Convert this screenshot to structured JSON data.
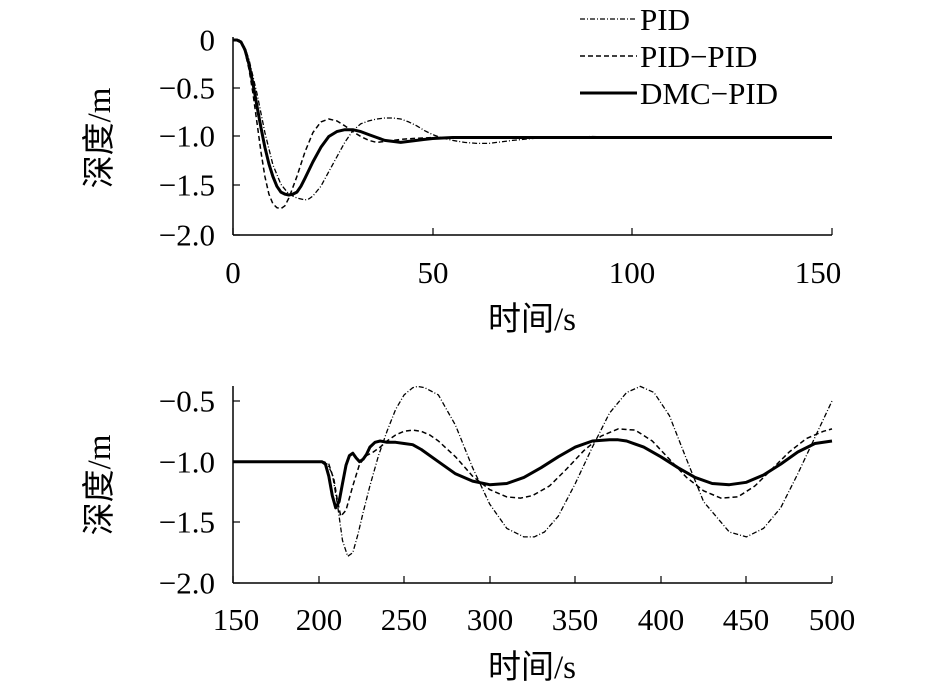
{
  "chart_data": [
    {
      "type": "line",
      "title": "",
      "xlabel": "时间/s",
      "ylabel": "深度/m",
      "xlim": [
        0,
        150
      ],
      "ylim": [
        -2.0,
        0
      ],
      "xticks": [
        0,
        50,
        100,
        150
      ],
      "xtick_labels": [
        "0",
        "50",
        "100",
        "150"
      ],
      "yticks": [
        0,
        -0.5,
        -1.0,
        -1.5,
        -2.0
      ],
      "ytick_labels": [
        "0",
        "−0.5",
        "−1.0",
        "−1.5",
        "−2.0"
      ],
      "grid": false,
      "legend": {
        "position": "top-right",
        "entries": [
          "PID",
          "PID−PID",
          "DMC−PID"
        ]
      },
      "series": [
        {
          "name": "PID",
          "style": "dash-dot",
          "x": [
            0,
            1,
            2,
            3,
            4,
            6,
            8,
            10,
            12,
            14,
            16,
            18,
            19,
            20,
            22,
            24,
            26,
            28,
            30,
            32,
            34,
            36,
            38,
            40,
            42,
            44,
            46,
            48,
            50,
            52,
            55,
            58,
            61,
            64,
            66,
            70,
            75,
            80,
            90,
            100,
            120,
            150
          ],
          "y": [
            0,
            0,
            -0.02,
            -0.08,
            -0.2,
            -0.55,
            -0.95,
            -1.28,
            -1.48,
            -1.58,
            -1.62,
            -1.64,
            -1.63,
            -1.6,
            -1.5,
            -1.35,
            -1.2,
            -1.05,
            -0.93,
            -0.86,
            -0.83,
            -0.81,
            -0.8,
            -0.8,
            -0.81,
            -0.84,
            -0.88,
            -0.93,
            -0.97,
            -1.0,
            -1.03,
            -1.05,
            -1.06,
            -1.06,
            -1.05,
            -1.03,
            -1.01,
            -1.0,
            -0.99,
            -1.0,
            -1.0,
            -1.0
          ]
        },
        {
          "name": "PID−PID",
          "style": "dashed",
          "x": [
            0,
            1,
            2,
            3,
            4,
            5,
            6,
            7,
            8,
            9,
            10,
            11,
            12,
            13,
            14,
            16,
            18,
            20,
            22,
            24,
            26,
            28,
            30,
            32,
            34,
            36,
            38,
            40,
            42,
            45,
            50,
            55,
            60,
            70,
            80,
            100,
            150
          ],
          "y": [
            0,
            0,
            -0.03,
            -0.12,
            -0.3,
            -0.55,
            -0.85,
            -1.15,
            -1.4,
            -1.58,
            -1.68,
            -1.72,
            -1.73,
            -1.7,
            -1.62,
            -1.4,
            -1.15,
            -0.95,
            -0.84,
            -0.81,
            -0.83,
            -0.88,
            -0.94,
            -0.99,
            -1.03,
            -1.05,
            -1.04,
            -1.03,
            -1.02,
            -1.01,
            -1.0,
            -1.0,
            -1.0,
            -1.0,
            -1.0,
            -1.0,
            -1.0
          ]
        },
        {
          "name": "DMC−PID",
          "style": "solid",
          "x": [
            0,
            1,
            2,
            3,
            4,
            5,
            6,
            7,
            8,
            9,
            10,
            11,
            12,
            13,
            14,
            15,
            16,
            17,
            18,
            20,
            22,
            24,
            26,
            28,
            30,
            32,
            34,
            36,
            38,
            40,
            42,
            44,
            46,
            48,
            50,
            55,
            60,
            70,
            80,
            100,
            150
          ],
          "y": [
            0,
            0,
            -0.02,
            -0.1,
            -0.25,
            -0.45,
            -0.68,
            -0.9,
            -1.1,
            -1.27,
            -1.4,
            -1.5,
            -1.56,
            -1.58,
            -1.59,
            -1.58,
            -1.56,
            -1.5,
            -1.42,
            -1.25,
            -1.1,
            -0.99,
            -0.94,
            -0.92,
            -0.92,
            -0.94,
            -0.97,
            -1.0,
            -1.03,
            -1.04,
            -1.05,
            -1.04,
            -1.03,
            -1.02,
            -1.01,
            -1.0,
            -1.0,
            -1.0,
            -1.0,
            -1.0,
            -1.0
          ]
        }
      ]
    },
    {
      "type": "line",
      "title": "",
      "xlabel": "时间/s",
      "ylabel": "深度/m",
      "xlim": [
        150,
        500
      ],
      "ylim": [
        -2.0,
        -0.35
      ],
      "xticks": [
        150,
        200,
        250,
        300,
        350,
        400,
        450,
        500
      ],
      "xtick_labels": [
        "150",
        "200",
        "250",
        "300",
        "350",
        "400",
        "450",
        "500"
      ],
      "yticks": [
        -0.5,
        -1.0,
        -1.5,
        -2.0
      ],
      "ytick_labels": [
        "−0.5",
        "−1.0",
        "−1.5",
        "−2.0"
      ],
      "grid": false,
      "series": [
        {
          "name": "PID",
          "style": "dash-dot",
          "x": [
            150,
            200,
            202,
            205,
            208,
            211,
            214,
            217,
            220,
            223,
            226,
            230,
            235,
            240,
            245,
            250,
            255,
            258,
            262,
            270,
            280,
            290,
            300,
            310,
            320,
            326,
            332,
            340,
            350,
            360,
            370,
            380,
            388,
            396,
            405,
            415,
            425,
            440,
            450,
            460,
            470,
            480,
            490,
            500
          ],
          "y": [
            -1.0,
            -1.0,
            -1.0,
            -1.02,
            -1.1,
            -1.35,
            -1.65,
            -1.78,
            -1.75,
            -1.6,
            -1.42,
            -1.2,
            -0.95,
            -0.75,
            -0.57,
            -0.45,
            -0.39,
            -0.38,
            -0.39,
            -0.45,
            -0.7,
            -1.05,
            -1.35,
            -1.55,
            -1.62,
            -1.62,
            -1.58,
            -1.45,
            -1.18,
            -0.88,
            -0.6,
            -0.43,
            -0.38,
            -0.43,
            -0.62,
            -0.98,
            -1.33,
            -1.58,
            -1.62,
            -1.55,
            -1.38,
            -1.1,
            -0.8,
            -0.5
          ]
        },
        {
          "name": "PID−PID",
          "style": "dashed",
          "x": [
            150,
            200,
            203,
            206,
            209,
            211,
            213,
            216,
            220,
            224,
            228,
            232,
            236,
            240,
            245,
            250,
            255,
            260,
            265,
            270,
            280,
            290,
            300,
            310,
            318,
            325,
            335,
            345,
            355,
            365,
            375,
            385,
            395,
            405,
            415,
            425,
            435,
            445,
            455,
            465,
            475,
            485,
            495,
            500
          ],
          "y": [
            -1.0,
            -1.0,
            -1.0,
            -1.02,
            -1.15,
            -1.32,
            -1.45,
            -1.4,
            -1.2,
            -1.02,
            -0.95,
            -0.92,
            -0.88,
            -0.83,
            -0.78,
            -0.75,
            -0.74,
            -0.75,
            -0.78,
            -0.83,
            -0.96,
            -1.12,
            -1.23,
            -1.29,
            -1.3,
            -1.28,
            -1.2,
            -1.06,
            -0.91,
            -0.79,
            -0.73,
            -0.74,
            -0.83,
            -0.98,
            -1.13,
            -1.24,
            -1.3,
            -1.29,
            -1.2,
            -1.06,
            -0.92,
            -0.81,
            -0.75,
            -0.73
          ]
        },
        {
          "name": "DMC−PID",
          "style": "solid",
          "x": [
            150,
            200,
            202,
            204,
            206,
            208,
            210,
            212,
            214,
            216,
            218,
            220,
            222,
            224,
            226,
            228,
            230,
            233,
            236,
            240,
            245,
            250,
            255,
            260,
            270,
            280,
            290,
            300,
            310,
            320,
            330,
            340,
            350,
            360,
            370,
            375,
            380,
            390,
            400,
            410,
            420,
            430,
            440,
            450,
            460,
            470,
            480,
            490,
            500
          ],
          "y": [
            -1.0,
            -1.0,
            -1.0,
            -1.02,
            -1.12,
            -1.28,
            -1.38,
            -1.33,
            -1.18,
            -1.03,
            -0.95,
            -0.93,
            -0.97,
            -1.0,
            -0.98,
            -0.94,
            -0.88,
            -0.84,
            -0.83,
            -0.84,
            -0.84,
            -0.85,
            -0.86,
            -0.9,
            -1.0,
            -1.1,
            -1.16,
            -1.19,
            -1.18,
            -1.13,
            -1.05,
            -0.96,
            -0.88,
            -0.83,
            -0.82,
            -0.82,
            -0.83,
            -0.88,
            -0.96,
            -1.05,
            -1.13,
            -1.18,
            -1.19,
            -1.17,
            -1.11,
            -1.02,
            -0.92,
            -0.85,
            -0.83
          ]
        }
      ]
    }
  ]
}
